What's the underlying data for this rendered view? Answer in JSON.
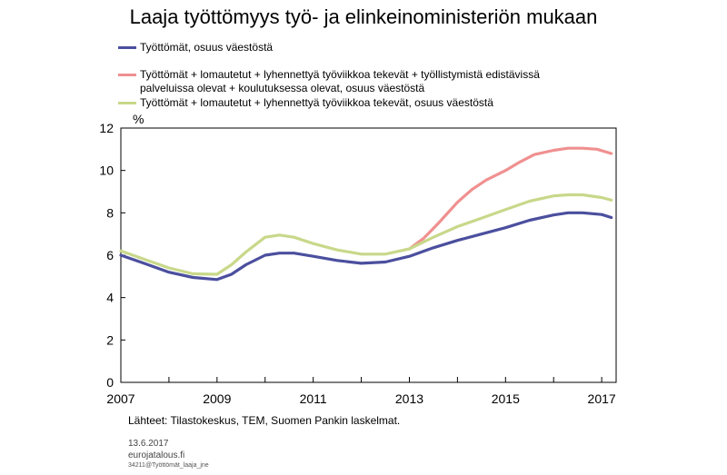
{
  "chart_data": {
    "type": "line",
    "title": "Laaja työttömyys työ- ja elinkeinoministeriön mukaan",
    "ylabel": "%",
    "xlabel": "",
    "ylim": [
      0,
      12
    ],
    "xlim": [
      2007,
      2017.3
    ],
    "y_ticks": [
      0,
      2,
      4,
      6,
      8,
      10,
      12
    ],
    "x_tick_labels": [
      "2007",
      "2009",
      "2011",
      "2013",
      "2015",
      "2017"
    ],
    "x_ticks": [
      2007,
      2009,
      2011,
      2013,
      2015,
      2017
    ],
    "grid": false,
    "legend_position": "top-left",
    "series": [
      {
        "name": "Työttömät, osuus väestöstä",
        "color": "#4b4f9e",
        "x": [
          2007.0,
          2007.5,
          2008.0,
          2008.5,
          2009.0,
          2009.3,
          2009.6,
          2010.0,
          2010.3,
          2010.6,
          2011.0,
          2011.5,
          2012.0,
          2012.5,
          2013.0,
          2013.5,
          2014.0,
          2014.5,
          2015.0,
          2015.5,
          2016.0,
          2016.3,
          2016.6,
          2017.0,
          2017.2
        ],
        "values": [
          6.0,
          5.6,
          5.2,
          4.95,
          4.85,
          5.1,
          5.55,
          6.0,
          6.1,
          6.1,
          5.95,
          5.75,
          5.62,
          5.68,
          5.95,
          6.35,
          6.7,
          7.0,
          7.3,
          7.65,
          7.9,
          8.0,
          8.0,
          7.92,
          7.78
        ]
      },
      {
        "name": "Työttömät + lomautetut + lyhennettyä työviikkoa tekevät + työllistymistä edistävissä palveluissa olevat + koulutuksessa olevat, osuus väestöstä",
        "color": "#f09090",
        "x": [
          2013.0,
          2013.3,
          2013.6,
          2014.0,
          2014.3,
          2014.6,
          2015.0,
          2015.3,
          2015.6,
          2016.0,
          2016.3,
          2016.6,
          2016.9,
          2017.2
        ],
        "values": [
          6.3,
          6.8,
          7.5,
          8.5,
          9.1,
          9.55,
          10.0,
          10.4,
          10.75,
          10.95,
          11.05,
          11.05,
          11.0,
          10.8
        ]
      },
      {
        "name": "Työttömät + lomautetut + lyhennettyä työviikkoa tekevät, osuus väestöstä",
        "color": "#c8d88a",
        "x": [
          2007.0,
          2007.5,
          2008.0,
          2008.5,
          2009.0,
          2009.3,
          2009.6,
          2010.0,
          2010.3,
          2010.6,
          2011.0,
          2011.5,
          2012.0,
          2012.5,
          2013.0,
          2013.5,
          2014.0,
          2014.5,
          2015.0,
          2015.5,
          2016.0,
          2016.3,
          2016.6,
          2017.0,
          2017.2
        ],
        "values": [
          6.2,
          5.8,
          5.4,
          5.12,
          5.1,
          5.55,
          6.15,
          6.85,
          6.95,
          6.85,
          6.55,
          6.25,
          6.05,
          6.05,
          6.3,
          6.85,
          7.35,
          7.75,
          8.15,
          8.55,
          8.8,
          8.85,
          8.85,
          8.72,
          8.6
        ]
      }
    ]
  },
  "source_text": "Lähteet: Tilastokeskus, TEM, Suomen Pankin laskelmat.",
  "footer": {
    "date": "13.6.2017",
    "site": "eurojatalous.fi",
    "code": "34211@Työttömät_laaja_jne"
  }
}
